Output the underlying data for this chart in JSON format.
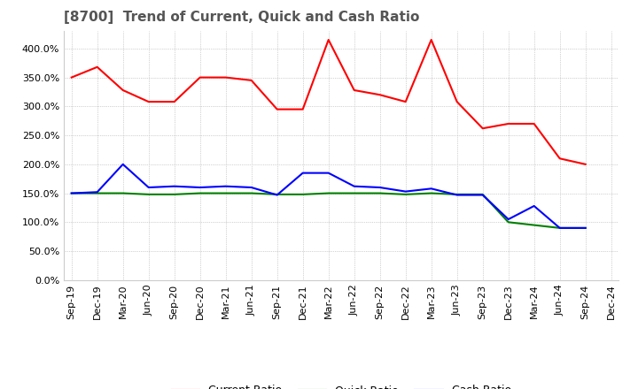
{
  "title": "[8700]  Trend of Current, Quick and Cash Ratio",
  "ylim": [
    0.0,
    430.0
  ],
  "yticks": [
    0.0,
    50.0,
    100.0,
    150.0,
    200.0,
    250.0,
    300.0,
    350.0,
    400.0
  ],
  "labels": [
    "Sep-19",
    "Dec-19",
    "Mar-20",
    "Jun-20",
    "Sep-20",
    "Dec-20",
    "Mar-21",
    "Jun-21",
    "Sep-21",
    "Dec-21",
    "Mar-22",
    "Jun-22",
    "Sep-22",
    "Dec-22",
    "Mar-23",
    "Jun-23",
    "Sep-23",
    "Dec-23",
    "Mar-24",
    "Jun-24",
    "Sep-24",
    "Dec-24"
  ],
  "current_ratio": [
    350.0,
    368.0,
    328.0,
    308.0,
    308.0,
    350.0,
    350.0,
    345.0,
    295.0,
    295.0,
    415.0,
    328.0,
    320.0,
    308.0,
    415.0,
    308.0,
    262.0,
    270.0,
    270.0,
    210.0,
    200.0,
    null
  ],
  "quick_ratio": [
    150.0,
    150.0,
    150.0,
    148.0,
    148.0,
    150.0,
    150.0,
    150.0,
    148.0,
    148.0,
    150.0,
    150.0,
    150.0,
    148.0,
    150.0,
    148.0,
    148.0,
    100.0,
    95.0,
    90.0,
    90.0,
    null
  ],
  "cash_ratio": [
    150.0,
    152.0,
    200.0,
    160.0,
    162.0,
    160.0,
    162.0,
    160.0,
    147.0,
    185.0,
    185.0,
    162.0,
    160.0,
    153.0,
    158.0,
    147.0,
    147.0,
    105.0,
    128.0,
    90.0,
    90.0,
    null
  ],
  "current_color": "#ff0000",
  "quick_color": "#008000",
  "cash_color": "#0000ff",
  "bg_color": "#ffffff",
  "plot_bg_color": "#ffffff",
  "grid_color": "#aaaaaa",
  "title_fontsize": 11,
  "tick_fontsize": 8,
  "legend_fontsize": 9
}
